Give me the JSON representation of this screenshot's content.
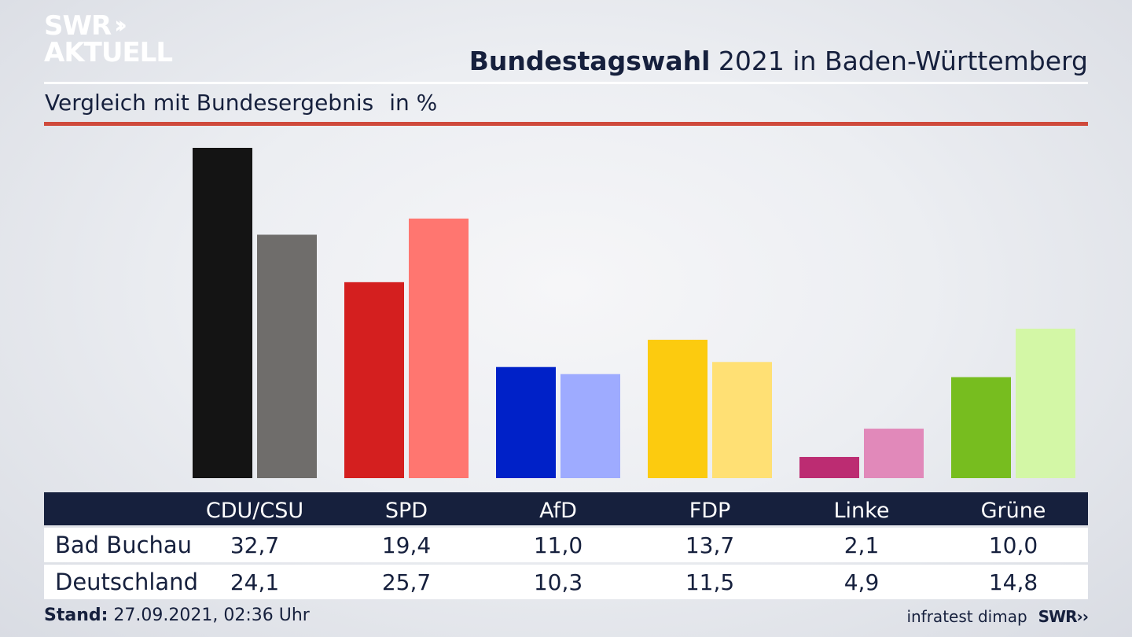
{
  "logo": {
    "line1": "SWR",
    "chevrons": "››",
    "line2": "AKTUELL"
  },
  "header": {
    "title_bold": "Bundestagswahl",
    "title_rest": " 2021 in Baden-Württemberg",
    "subtitle": "Vergleich mit Bundesergebnis",
    "unit": "in %"
  },
  "chart_data": {
    "type": "bar",
    "categories": [
      "CDU/CSU",
      "SPD",
      "AfD",
      "FDP",
      "Linke",
      "Grüne"
    ],
    "series": [
      {
        "name": "Bad Buchau",
        "values": [
          32.7,
          19.4,
          11.0,
          13.7,
          2.1,
          10.0
        ],
        "labels": [
          "32,7",
          "19,4",
          "11,0",
          "13,7",
          "2,1",
          "10,0"
        ]
      },
      {
        "name": "Deutschland",
        "values": [
          24.1,
          25.7,
          10.3,
          11.5,
          4.9,
          14.8
        ],
        "labels": [
          "24,1",
          "25,7",
          "10,3",
          "11,5",
          "4,9",
          "14,8"
        ]
      }
    ],
    "colors_primary": [
      "#141414",
      "#d41f1f",
      "#0021c8",
      "#fccb0f",
      "#bc2c72",
      "#77bd1f"
    ],
    "colors_secondary": [
      "#6f6d6b",
      "#ff7670",
      "#9eabff",
      "#ffe074",
      "#e189ba",
      "#d3f7a6"
    ],
    "ylim": [
      0,
      32.7
    ],
    "grid": false
  },
  "footer": {
    "stand_label": "Stand:",
    "stand_value": " 27.09.2021, 02:36 Uhr",
    "source": "infratest dimap",
    "brand": "SWR››"
  }
}
